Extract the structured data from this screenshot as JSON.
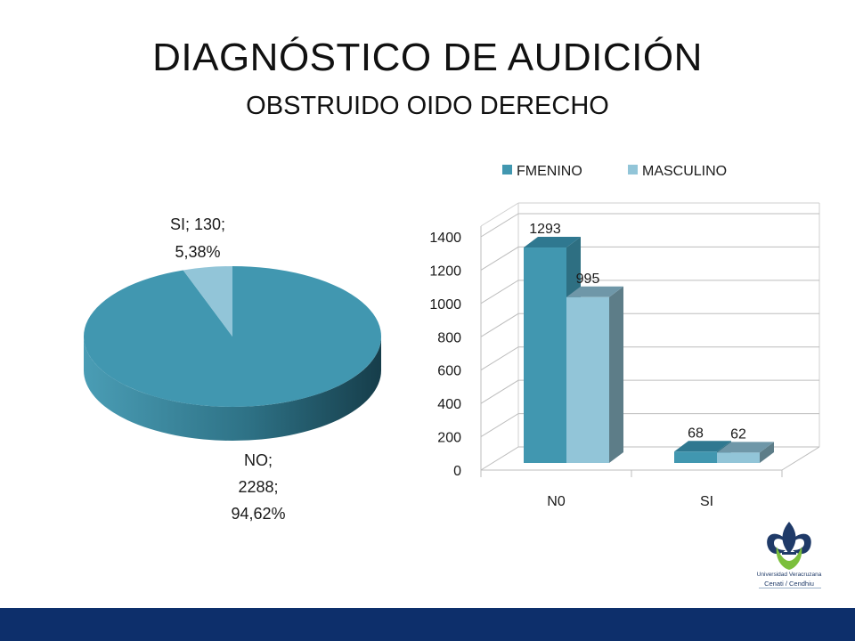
{
  "slide": {
    "title": "DIAGNÓSTICO DE AUDICIÓN",
    "subtitle": "OBSTRUIDO OIDO DERECHO"
  },
  "colors": {
    "fmenino": "#4197b0",
    "masculino": "#92c5d8",
    "footer": "#0d2f6b",
    "logo_green": "#7bbf3c",
    "logo_blue": "#1f3a68"
  },
  "logo": {
    "icon": "veracruzana-fleur-de-lis-icon",
    "university": "Universidad Veracruzana",
    "department": "Cenati / Cendhiu"
  },
  "chart_data": [
    {
      "type": "pie",
      "title": "",
      "slices": [
        {
          "label": "NO",
          "value": 2288,
          "percent": "94,62%",
          "label_lines": [
            "NO;",
            "2288;",
            "94,62%"
          ]
        },
        {
          "label": "SI",
          "value": 130,
          "percent": "5,38%",
          "label_lines": [
            "SI; 130;",
            "5,38%"
          ]
        }
      ]
    },
    {
      "type": "bar",
      "title": "",
      "categories": [
        "N0",
        "SI"
      ],
      "series": [
        {
          "name": "FMENINO",
          "values": [
            1293,
            68
          ]
        },
        {
          "name": "MASCULINO",
          "values": [
            995,
            62
          ]
        }
      ],
      "ylim": [
        0,
        1400
      ],
      "yticks": [
        0,
        200,
        400,
        600,
        800,
        1000,
        1200,
        1400
      ],
      "legend": "top",
      "grid": true
    }
  ]
}
